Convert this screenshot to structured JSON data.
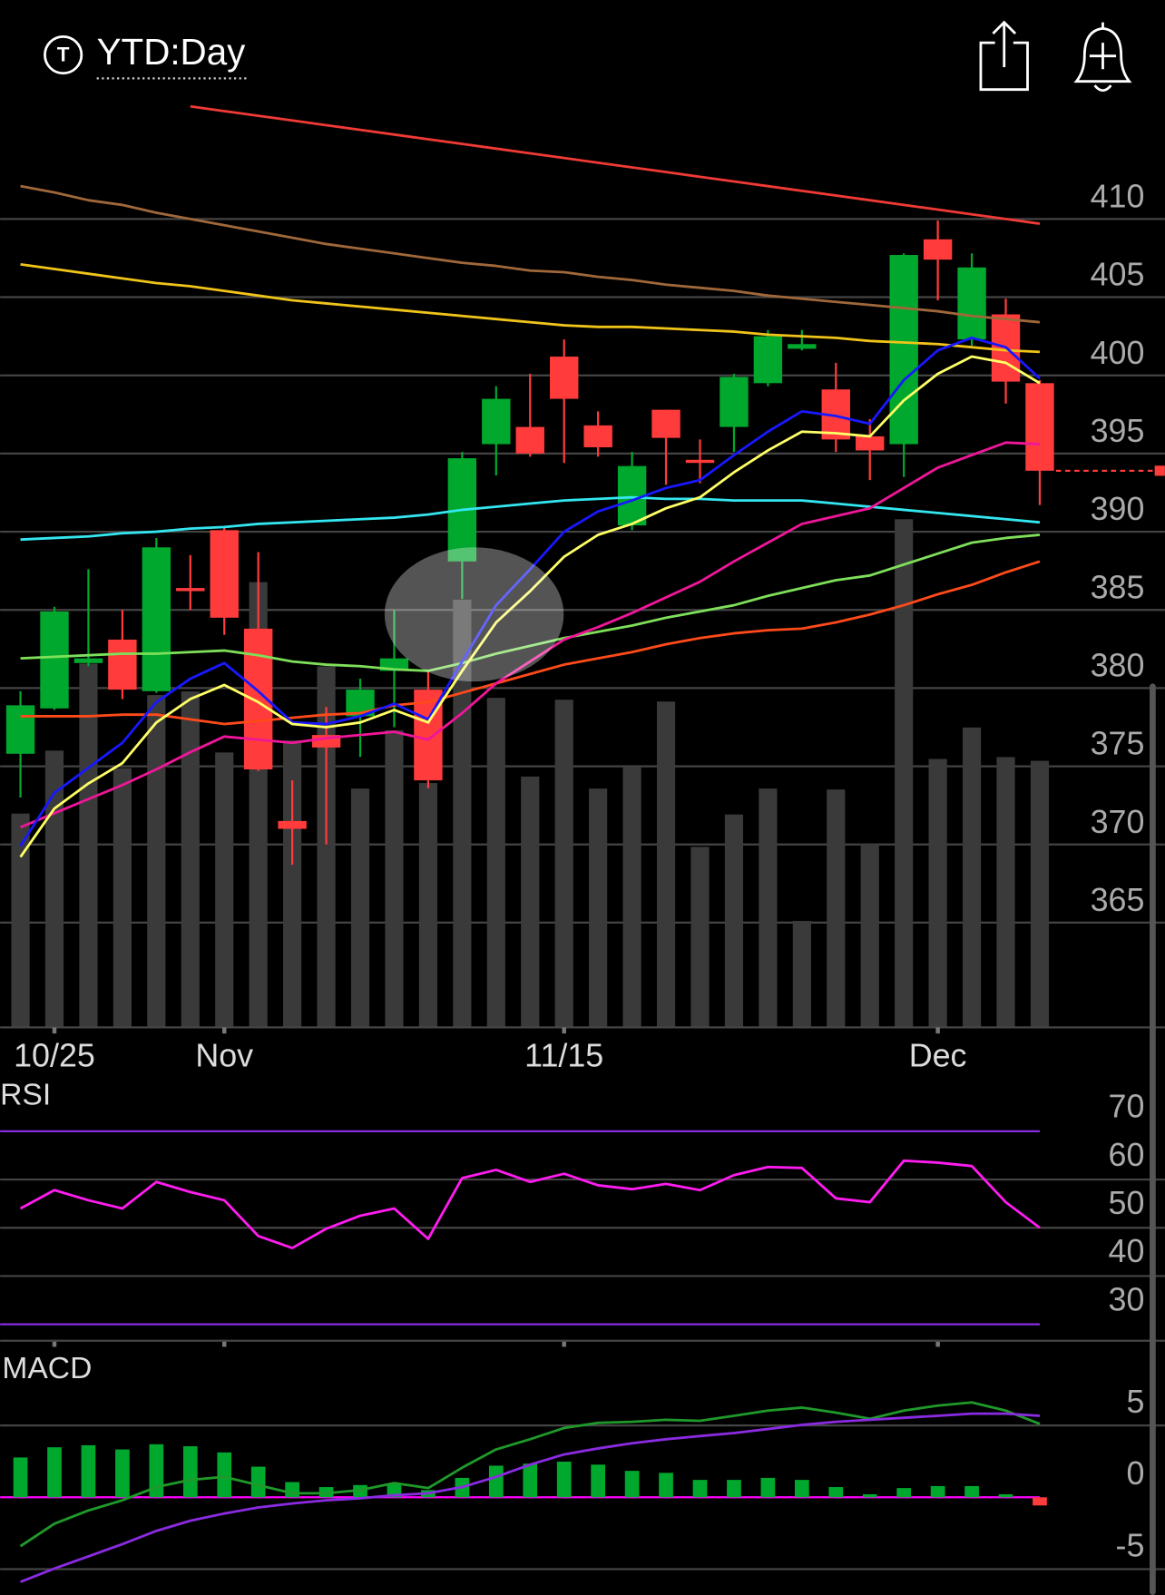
{
  "header": {
    "icon_letter": "T",
    "title": "YTD:Day"
  },
  "chart_data": [
    {
      "type": "candlestick",
      "categories": [
        null,
        "10/25",
        null,
        null,
        null,
        null,
        "Nov",
        null,
        null,
        null,
        null,
        null,
        null,
        null,
        null,
        null,
        "11/15",
        null,
        null,
        null,
        null,
        null,
        null,
        null,
        null,
        null,
        null,
        "Dec",
        null,
        null,
        null
      ],
      "open": [
        375.8,
        378.7,
        381.6,
        383.1,
        379.8,
        386.4,
        390.1,
        383.8,
        371.5,
        377.0,
        378.2,
        381.1,
        379.9,
        388.1,
        395.6,
        396.7,
        401.2,
        396.8,
        390.4,
        397.8,
        394.6,
        396.7,
        399.5,
        401.7,
        399.1,
        396.1,
        395.6,
        408.7,
        402.3,
        403.9,
        399.5
      ],
      "high": [
        379.8,
        385.2,
        387.6,
        385.0,
        389.6,
        388.5,
        390.3,
        388.7,
        374.1,
        378.8,
        380.6,
        385.0,
        381.1,
        395.1,
        399.3,
        400.1,
        402.3,
        397.7,
        395.1,
        397.8,
        395.9,
        400.1,
        402.9,
        402.9,
        400.8,
        397.2,
        407.8,
        409.9,
        407.8,
        404.9,
        399.7
      ],
      "low": [
        373.0,
        378.6,
        381.4,
        379.3,
        379.7,
        385.0,
        383.4,
        374.7,
        368.7,
        370.0,
        375.6,
        377.5,
        373.6,
        385.7,
        393.6,
        394.8,
        394.4,
        394.8,
        390.1,
        393.0,
        393.1,
        395.1,
        399.3,
        401.6,
        395.1,
        393.3,
        393.5,
        404.8,
        401.9,
        398.2,
        391.7
      ],
      "close": [
        378.9,
        384.9,
        381.9,
        379.9,
        389.0,
        386.2,
        384.5,
        374.8,
        371.0,
        376.2,
        379.9,
        381.9,
        374.1,
        394.7,
        398.5,
        395.0,
        398.5,
        395.4,
        394.2,
        396.0,
        394.4,
        399.9,
        402.5,
        402.0,
        395.9,
        395.2,
        407.7,
        407.4,
        406.9,
        399.6,
        393.9
      ],
      "up_color": "#00a82d",
      "down_color": "#ff3b3b",
      "volume": [
        23.1,
        29.9,
        39.3,
        28.0,
        35.9,
        36.3,
        29.7,
        48.1,
        31.0,
        39.0,
        25.8,
        32.1,
        26.4,
        46.2,
        35.6,
        27.1,
        35.4,
        25.8,
        28.1,
        35.2,
        19.5,
        23.0,
        25.8,
        11.5,
        25.7,
        19.8,
        54.9,
        29.0,
        32.4,
        29.2,
        28.8
      ],
      "volume_ylim": [
        0,
        100
      ],
      "volume_color": "#3a3a3a",
      "series": [
        {
          "color": "#f03a35",
          "values": [
            null,
            null,
            null,
            null,
            null,
            417.2,
            416.9,
            416.6,
            416.3,
            416.0,
            415.7,
            415.4,
            415.1,
            414.8,
            414.5,
            414.2,
            413.9,
            413.6,
            413.3,
            413.0,
            412.7,
            412.4,
            412.1,
            411.8,
            411.5,
            411.2,
            410.9,
            410.6,
            410.3,
            410.0,
            409.7
          ]
        },
        {
          "color": "#a0683a",
          "values": [
            412.1,
            411.7,
            411.2,
            410.9,
            410.4,
            410.0,
            409.6,
            409.2,
            408.8,
            408.4,
            408.1,
            407.8,
            407.5,
            407.2,
            407.0,
            406.7,
            406.6,
            406.3,
            406.1,
            405.8,
            405.6,
            405.4,
            405.1,
            404.9,
            404.7,
            404.5,
            404.3,
            404.1,
            403.8,
            403.6,
            403.4
          ]
        },
        {
          "color": "#f0c419",
          "values": [
            407.1,
            406.8,
            406.5,
            406.2,
            405.9,
            405.7,
            405.4,
            405.1,
            404.8,
            404.6,
            404.4,
            404.2,
            404.0,
            403.8,
            403.6,
            403.4,
            403.2,
            403.1,
            403.1,
            403.0,
            402.9,
            402.8,
            402.6,
            402.5,
            402.4,
            402.2,
            402.1,
            402.0,
            401.8,
            401.6,
            401.5
          ]
        },
        {
          "color": "#33e6f0",
          "values": [
            389.5,
            389.6,
            389.7,
            389.9,
            390.0,
            390.2,
            390.3,
            390.5,
            390.6,
            390.7,
            390.8,
            390.9,
            391.1,
            391.4,
            391.6,
            391.8,
            392.0,
            392.1,
            392.2,
            392.1,
            392.1,
            392.0,
            392.0,
            392.0,
            391.8,
            391.6,
            391.4,
            391.2,
            391.0,
            390.8,
            390.6
          ]
        },
        {
          "color": "#7ee05a",
          "values": [
            381.9,
            382.0,
            382.1,
            382.2,
            382.2,
            382.3,
            382.4,
            382.1,
            381.7,
            381.5,
            381.4,
            381.2,
            381.1,
            381.6,
            382.2,
            382.7,
            383.2,
            383.6,
            384.0,
            384.5,
            384.9,
            385.3,
            385.9,
            386.4,
            386.9,
            387.2,
            387.9,
            388.6,
            389.3,
            389.6,
            389.8
          ]
        },
        {
          "color": "#ff4a1a",
          "values": [
            378.2,
            378.2,
            378.2,
            378.3,
            378.3,
            378.0,
            377.7,
            377.9,
            378.1,
            378.3,
            378.4,
            378.9,
            379.1,
            379.7,
            380.3,
            380.9,
            381.5,
            381.9,
            382.3,
            382.8,
            383.2,
            383.5,
            383.7,
            383.8,
            384.2,
            384.7,
            385.3,
            386.0,
            386.6,
            387.4,
            388.1
          ]
        },
        {
          "color": "#f0169a",
          "values": [
            371.1,
            372.0,
            372.9,
            373.8,
            374.8,
            375.9,
            376.9,
            376.7,
            376.5,
            376.8,
            377.0,
            377.2,
            376.7,
            378.4,
            380.3,
            381.7,
            383.1,
            383.9,
            384.8,
            385.8,
            386.8,
            388.1,
            389.3,
            390.5,
            391.0,
            391.5,
            392.8,
            394.1,
            394.9,
            395.7,
            395.6
          ]
        },
        {
          "color": "#1818ff",
          "values": [
            369.9,
            373.3,
            374.9,
            376.5,
            379.1,
            380.6,
            381.6,
            379.8,
            377.8,
            377.7,
            378.2,
            379.0,
            378.0,
            381.7,
            385.3,
            387.6,
            390.0,
            391.3,
            392.0,
            392.8,
            393.3,
            394.9,
            396.4,
            397.7,
            397.4,
            396.9,
            399.7,
            401.6,
            402.4,
            401.8,
            399.8
          ]
        },
        {
          "color": "#ffff66",
          "values": [
            369.2,
            372.3,
            373.9,
            375.2,
            377.8,
            379.3,
            380.2,
            379.1,
            377.7,
            377.5,
            377.8,
            378.6,
            377.8,
            381.1,
            384.2,
            386.2,
            388.4,
            389.8,
            390.5,
            391.5,
            392.2,
            393.8,
            395.2,
            396.4,
            396.3,
            396.1,
            398.4,
            400.1,
            401.2,
            400.8,
            399.5
          ]
        }
      ],
      "ylim": [
        358.3,
        417.5
      ],
      "yticks": [
        365,
        370,
        375,
        380,
        385,
        390,
        395,
        400,
        405,
        410
      ],
      "grid": true,
      "last_price_line": true,
      "last_price_color": "#ff3b3b"
    },
    {
      "type": "line",
      "title": "RSI",
      "values": [
        54.0,
        57.8,
        55.7,
        54.0,
        59.5,
        57.4,
        55.7,
        48.3,
        45.8,
        49.8,
        52.5,
        54.0,
        47.7,
        60.3,
        62.0,
        59.5,
        61.2,
        58.8,
        58.0,
        59.1,
        57.8,
        60.9,
        62.6,
        62.4,
        56.1,
        55.3,
        63.9,
        63.5,
        62.8,
        55.3,
        50.0
      ],
      "color": "#ff1cf0",
      "ylim": [
        26.6,
        79.3
      ],
      "yticks": [
        30,
        40,
        50,
        60,
        70
      ],
      "grid": true,
      "levels": [
        30,
        70
      ],
      "level_color": "#8a2be2"
    },
    {
      "type": "macd",
      "title": "MACD",
      "series": [
        {
          "color": "#1f9a2a",
          "values": [
            -3.4,
            -1.84,
            -0.92,
            -0.21,
            0.71,
            1.21,
            1.42,
            0.85,
            0.28,
            0.28,
            0.5,
            0.99,
            0.64,
            2.06,
            3.33,
            4.04,
            4.82,
            5.18,
            5.25,
            5.39,
            5.32,
            5.67,
            6.03,
            6.24,
            5.89,
            5.46,
            6.03,
            6.38,
            6.6,
            6.03,
            5.11
          ]
        },
        {
          "color": "#8a2be2",
          "values": [
            -5.89,
            -4.96,
            -4.11,
            -3.26,
            -2.34,
            -1.63,
            -1.13,
            -0.71,
            -0.43,
            -0.21,
            -0.07,
            0.14,
            0.28,
            0.71,
            1.42,
            2.27,
            2.98,
            3.4,
            3.76,
            4.04,
            4.26,
            4.47,
            4.75,
            5.04,
            5.25,
            5.39,
            5.53,
            5.67,
            5.82,
            5.82,
            5.67
          ]
        }
      ],
      "histogram": [
        2.77,
        3.48,
        3.62,
        3.33,
        3.69,
        3.55,
        3.12,
        2.13,
        1.06,
        0.71,
        0.85,
        0.92,
        0.5,
        1.35,
        2.2,
        2.34,
        2.48,
        2.27,
        1.84,
        1.7,
        1.21,
        1.21,
        1.35,
        1.21,
        0.71,
        0.21,
        0.64,
        0.78,
        0.78,
        0.21,
        -0.57
      ],
      "up_color": "#00a82d",
      "down_color": "#ff3b3b",
      "zero_color": "#ff00ff",
      "ylim": [
        -6.8,
        10.4
      ],
      "yticks": [
        -5,
        0,
        5
      ],
      "grid": true
    }
  ]
}
